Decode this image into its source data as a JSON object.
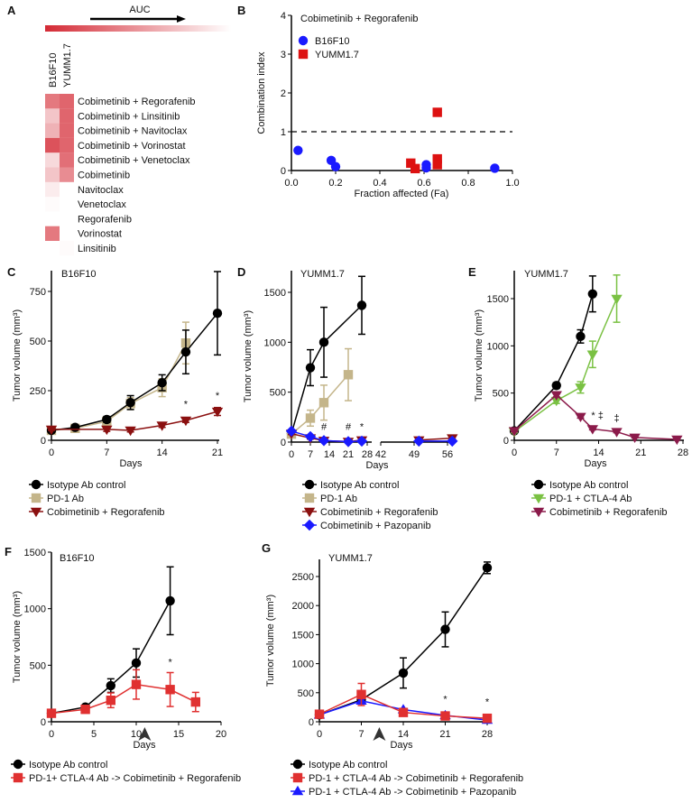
{
  "colors": {
    "black": "#000000",
    "tan": "#c4b58a",
    "darkred": "#8b1010",
    "blue": "#1a1aff",
    "red": "#e03030",
    "green": "#7ac143",
    "maroon": "#8b1a4a",
    "heat": "#d42a35"
  },
  "panel_A": {
    "letter": "A",
    "gradient_label": "AUC",
    "columns": [
      "B16F10",
      "YUMM1.7"
    ],
    "rows": [
      "Cobimetinib + Regorafenib",
      "Cobimetinib + Linsitinib",
      "Cobimetinib + Navitoclax",
      "Cobimetinib + Vorinostat",
      "Cobimetinib + Venetoclax",
      "Cobimetinib",
      "Navitoclax",
      "Venetoclax",
      "Regorafenib",
      "Vorinostat",
      "Linsitinib"
    ]
  },
  "chart_data": [
    {
      "panel": "A",
      "type": "heatmap",
      "columns": [
        "B16F10",
        "YUMM1.7"
      ],
      "rows": [
        "Cobimetinib + Regorafenib",
        "Cobimetinib + Linsitinib",
        "Cobimetinib + Navitoclax",
        "Cobimetinib + Vorinostat",
        "Cobimetinib + Venetoclax",
        "Cobimetinib",
        "Navitoclax",
        "Venetoclax",
        "Regorafenib",
        "Vorinostat",
        "Linsitinib"
      ],
      "relative_intensity": [
        [
          0.7,
          0.8
        ],
        [
          0.3,
          0.8
        ],
        [
          0.4,
          0.8
        ],
        [
          0.9,
          0.8
        ],
        [
          0.2,
          0.75
        ],
        [
          0.3,
          0.6
        ],
        [
          0.1,
          0
        ],
        [
          0.02,
          0
        ],
        [
          0,
          0
        ],
        [
          0.7,
          0
        ],
        [
          0,
          0.02
        ]
      ]
    },
    {
      "panel": "B",
      "type": "scatter",
      "letter": "B",
      "title": "Cobimetinib + Regorafenib",
      "xlabel": "Fraction affected (Fa)",
      "ylabel": "Combination index",
      "xlim": [
        0,
        1
      ],
      "ylim": [
        0,
        4
      ],
      "xticks": [
        "0.0",
        "0.2",
        "0.4",
        "0.6",
        "0.8",
        "1.0"
      ],
      "yticks": [
        "0",
        "1",
        "2",
        "3",
        "4"
      ],
      "reference_line": 1,
      "legend_placement": "top-left",
      "series": [
        {
          "name": "B16F10",
          "marker": "circle",
          "color": "#1a1aff",
          "points": [
            [
              0.03,
              0.52
            ],
            [
              0.18,
              0.26
            ],
            [
              0.2,
              0.1
            ],
            [
              0.61,
              0.15
            ],
            [
              0.61,
              0.07
            ],
            [
              0.92,
              0.06
            ]
          ]
        },
        {
          "name": "YUMM1.7",
          "marker": "square",
          "color": "#dd1111",
          "points": [
            [
              0.54,
              0.19
            ],
            [
              0.56,
              0.05
            ],
            [
              0.66,
              1.5
            ],
            [
              0.66,
              0.3
            ],
            [
              0.66,
              0.15
            ]
          ]
        }
      ]
    },
    {
      "panel": "C",
      "type": "line",
      "letter": "C",
      "title": "B16F10",
      "xlabel": "Days",
      "ylabel": "Tumor volume (mm³)",
      "xlim": [
        0,
        21
      ],
      "ylim": [
        0,
        750
      ],
      "xticks": [
        0,
        7,
        14,
        21
      ],
      "yticks": [
        0,
        250,
        500,
        750
      ],
      "series": [
        {
          "name": "PD-1 Ab",
          "marker": "square",
          "color": "#c4b58a",
          "x": [
            0,
            3,
            7,
            10,
            14,
            17
          ],
          "y": [
            50,
            60,
            95,
            185,
            265,
            490
          ],
          "err": [
            10,
            10,
            15,
            30,
            45,
            105
          ]
        },
        {
          "name": "Isotype Ab control",
          "marker": "circle",
          "color": "#000000",
          "x": [
            0,
            3,
            7,
            10,
            14,
            17,
            21
          ],
          "y": [
            50,
            65,
            105,
            190,
            290,
            445,
            640
          ],
          "err": [
            10,
            10,
            15,
            35,
            40,
            110,
            210
          ]
        },
        {
          "name": "Cobimetinib + Regorafenib",
          "marker": "tri-down",
          "color": "#8b1010",
          "x": [
            0,
            7,
            10,
            14,
            17,
            21
          ],
          "y": [
            55,
            55,
            50,
            75,
            100,
            145
          ],
          "err": [
            5,
            10,
            8,
            10,
            10,
            20
          ]
        }
      ],
      "annotations": [
        {
          "x": 17,
          "y": 165,
          "text": "*"
        },
        {
          "x": 21,
          "y": 210,
          "text": "*"
        }
      ]
    },
    {
      "panel": "D",
      "type": "line",
      "letter": "D",
      "title": "YUMM1.7",
      "xlabel": "Days",
      "ylabel": "Tumor volume (mm³)",
      "xlim": [
        0,
        56
      ],
      "x_axis_break": [
        28,
        42
      ],
      "ylim": [
        0,
        1500
      ],
      "xticks": [
        0,
        7,
        14,
        21,
        28,
        42,
        49,
        56
      ],
      "yticks": [
        0,
        500,
        1000,
        1500
      ],
      "series": [
        {
          "name": "Isotype Ab control",
          "marker": "circle",
          "color": "#000000",
          "x": [
            0,
            7,
            12,
            26
          ],
          "y": [
            85,
            745,
            1000,
            1370
          ],
          "err": [
            20,
            180,
            350,
            290
          ]
        },
        {
          "name": "PD-1 Ab",
          "marker": "square",
          "color": "#c4b58a",
          "x": [
            0,
            7,
            12,
            21
          ],
          "y": [
            80,
            240,
            395,
            675
          ],
          "err": [
            20,
            80,
            175,
            260
          ]
        },
        {
          "name": "Cobimetinib + Regorafenib",
          "marker": "tri-down",
          "color": "#8b1010",
          "x": [
            0,
            7,
            12,
            21,
            26,
            50,
            57
          ],
          "y": [
            85,
            40,
            15,
            5,
            20,
            20,
            40
          ],
          "err": [
            10,
            10,
            5,
            5,
            10,
            10,
            10
          ]
        },
        {
          "name": "Cobimetinib + Pazopanib",
          "marker": "diamond",
          "color": "#1a1aff",
          "x": [
            0,
            7,
            12,
            21,
            26,
            50,
            57
          ],
          "y": [
            110,
            55,
            15,
            5,
            10,
            10,
            10
          ],
          "err": [
            10,
            10,
            5,
            5,
            5,
            5,
            5
          ]
        }
      ],
      "annotations": [
        {
          "x": 12,
          "y": 120,
          "text": "#"
        },
        {
          "x": 21,
          "y": 120,
          "text": "#"
        },
        {
          "x": 26,
          "y": 120,
          "text": "*"
        }
      ]
    },
    {
      "panel": "E",
      "type": "line",
      "letter": "E",
      "title": "YUMM1.7",
      "xlabel": "Days",
      "ylabel": "Tumor volume (mm³)",
      "xlim": [
        0,
        28
      ],
      "ylim": [
        0,
        1500
      ],
      "xticks": [
        0,
        7,
        14,
        21,
        28
      ],
      "yticks": [
        0,
        500,
        1000,
        1500
      ],
      "series": [
        {
          "name": "Isotype Ab control",
          "marker": "circle",
          "color": "#000000",
          "x": [
            0,
            7,
            11,
            13
          ],
          "y": [
            100,
            580,
            1100,
            1550
          ],
          "err": [
            10,
            30,
            70,
            190
          ]
        },
        {
          "name": "PD-1 + CTLA-4 Ab",
          "marker": "tri-down",
          "color": "#7ac143",
          "x": [
            0,
            7,
            11,
            13,
            17
          ],
          "y": [
            90,
            420,
            560,
            910,
            1500
          ],
          "err": [
            10,
            30,
            60,
            140,
            250
          ]
        },
        {
          "name": "Cobimetinib + Regorafenib",
          "marker": "tri-down",
          "color": "#8b1a4a",
          "x": [
            0,
            7,
            11,
            13,
            17,
            20,
            27
          ],
          "y": [
            100,
            480,
            250,
            120,
            90,
            30,
            10
          ],
          "err": [
            10,
            20,
            15,
            10,
            10,
            5,
            5
          ]
        }
      ],
      "annotations": [
        {
          "x": 13.8,
          "y": 230,
          "text": "* ‡"
        },
        {
          "x": 17,
          "y": 200,
          "text": "‡"
        }
      ]
    },
    {
      "panel": "F",
      "type": "line",
      "letter": "F",
      "title": "B16F10",
      "xlabel": "Days",
      "ylabel": "Tumor volume (mm³)",
      "xlim": [
        0,
        20
      ],
      "ylim": [
        0,
        1500
      ],
      "xticks": [
        0,
        5,
        10,
        15,
        20
      ],
      "yticks": [
        0,
        500,
        1000,
        1500
      ],
      "treatment_switch_day": 11,
      "series": [
        {
          "name": "Isotype Ab control",
          "marker": "circle",
          "color": "#000000",
          "x": [
            0,
            4,
            7,
            10,
            14
          ],
          "y": [
            75,
            130,
            320,
            520,
            1070
          ],
          "err": [
            10,
            10,
            60,
            125,
            300
          ]
        },
        {
          "name": "PD-1+ CTLA-4 Ab -> Cobimetinib + Regorafenib",
          "marker": "square",
          "color": "#e03030",
          "x": [
            0,
            4,
            7,
            10,
            14,
            17
          ],
          "y": [
            75,
            110,
            190,
            330,
            285,
            175
          ],
          "err": [
            10,
            15,
            65,
            130,
            150,
            85
          ]
        }
      ],
      "annotations": [
        {
          "x": 14,
          "y": 500,
          "text": "*"
        }
      ]
    },
    {
      "panel": "G",
      "type": "line",
      "letter": "G",
      "title": "YUMM1.7",
      "xlabel": "Days",
      "ylabel": "Tumor volume (mm³)",
      "xlim": [
        0,
        28
      ],
      "ylim": [
        0,
        2500
      ],
      "xticks": [
        0,
        7,
        14,
        21,
        28
      ],
      "yticks": [
        0,
        500,
        1000,
        1500,
        2000,
        2500
      ],
      "treatment_switch_day": 10,
      "series": [
        {
          "name": "Isotype Ab control",
          "marker": "circle",
          "color": "#000000",
          "x": [
            0,
            7,
            14,
            21,
            28
          ],
          "y": [
            120,
            380,
            840,
            1590,
            2650
          ],
          "err": [
            20,
            20,
            260,
            300,
            100
          ]
        },
        {
          "name": "PD-1 + CTLA-4 Ab -> Cobimetinib + Pazopanib",
          "marker": "tri-up",
          "color": "#1a1aff",
          "x": [
            0,
            7,
            14,
            21,
            28
          ],
          "y": [
            120,
            360,
            210,
            110,
            30
          ],
          "err": [
            15,
            30,
            20,
            15,
            10
          ]
        },
        {
          "name": "PD-1 + CTLA-4 Ab -> Cobimetinib + Regorafenib",
          "marker": "square",
          "color": "#e03030",
          "x": [
            0,
            7,
            14,
            21,
            28
          ],
          "y": [
            130,
            470,
            160,
            100,
            60
          ],
          "err": [
            20,
            190,
            30,
            20,
            20
          ]
        }
      ],
      "legend_order": [
        0,
        2,
        1
      ],
      "annotations": [
        {
          "x": 21,
          "y": 330,
          "text": "*"
        },
        {
          "x": 28,
          "y": 290,
          "text": "*"
        }
      ]
    }
  ]
}
